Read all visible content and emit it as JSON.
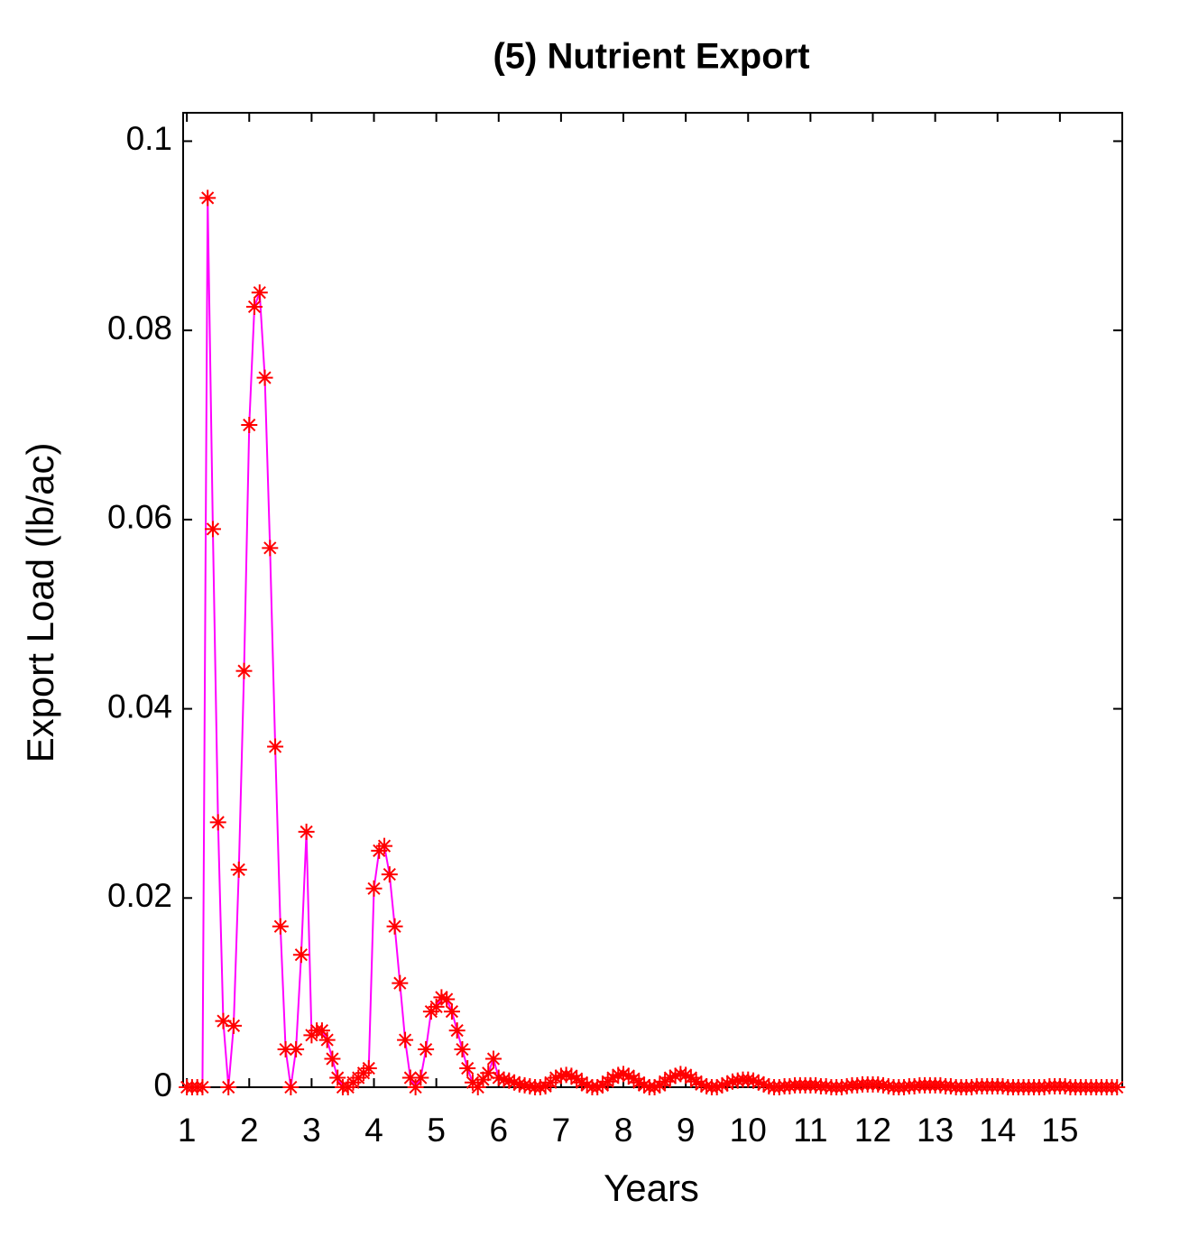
{
  "chart_data": {
    "type": "line",
    "title": "(5) Nutrient Export",
    "xlabel": "Years",
    "ylabel": "Export Load (lb/ac)",
    "x": [
      1,
      1.0833,
      1.1667,
      1.25,
      1.3333,
      1.4167,
      1.5,
      1.5833,
      1.6667,
      1.75,
      1.8333,
      1.9167,
      2,
      2.0833,
      2.1667,
      2.25,
      2.3333,
      2.4167,
      2.5,
      2.5833,
      2.6667,
      2.75,
      2.8333,
      2.9167,
      3,
      3.0833,
      3.1667,
      3.25,
      3.3333,
      3.4167,
      3.5,
      3.5833,
      3.6667,
      3.75,
      3.8333,
      3.9167,
      4,
      4.0833,
      4.1667,
      4.25,
      4.3333,
      4.4167,
      4.5,
      4.5833,
      4.6667,
      4.75,
      4.8333,
      4.9167,
      5,
      5.0833,
      5.1667,
      5.25,
      5.3333,
      5.4167,
      5.5,
      5.5833,
      5.6667,
      5.75,
      5.8333,
      5.9167,
      6,
      6.0833,
      6.1667,
      6.25,
      6.3333,
      6.4167,
      6.5,
      6.5833,
      6.6667,
      6.75,
      6.8333,
      6.9167,
      7,
      7.0833,
      7.1667,
      7.25,
      7.3333,
      7.4167,
      7.5,
      7.5833,
      7.6667,
      7.75,
      7.8333,
      7.9167,
      8,
      8.0833,
      8.1667,
      8.25,
      8.3333,
      8.4167,
      8.5,
      8.5833,
      8.6667,
      8.75,
      8.8333,
      8.9167,
      9,
      9.0833,
      9.1667,
      9.25,
      9.3333,
      9.4167,
      9.5,
      9.5833,
      9.6667,
      9.75,
      9.8333,
      9.9167,
      10,
      10.0833,
      10.1667,
      10.25,
      10.3333,
      10.4167,
      10.5,
      10.5833,
      10.6667,
      10.75,
      10.8333,
      10.9167,
      11,
      11.0833,
      11.1667,
      11.25,
      11.3333,
      11.4167,
      11.5,
      11.5833,
      11.6667,
      11.75,
      11.8333,
      11.9167,
      12,
      12.0833,
      12.1667,
      12.25,
      12.3333,
      12.4167,
      12.5,
      12.5833,
      12.6667,
      12.75,
      12.8333,
      12.9167,
      13,
      13.0833,
      13.1667,
      13.25,
      13.3333,
      13.4167,
      13.5,
      13.5833,
      13.6667,
      13.75,
      13.8333,
      13.9167,
      14,
      14.0833,
      14.1667,
      14.25,
      14.3333,
      14.4167,
      14.5,
      14.5833,
      14.6667,
      14.75,
      14.8333,
      14.9167,
      15,
      15.0833,
      15.1667,
      15.25,
      15.3333,
      15.4167,
      15.5,
      15.5833,
      15.6667,
      15.75,
      15.8333,
      15.9167
    ],
    "values": [
      0,
      0,
      0,
      0,
      0.094,
      0.059,
      0.028,
      0.007,
      0,
      0.0065,
      0.023,
      0.044,
      0.07,
      0.0825,
      0.084,
      0.075,
      0.057,
      0.036,
      0.017,
      0.004,
      0,
      0.004,
      0.014,
      0.027,
      0.0055,
      0.006,
      0.006,
      0.005,
      0.003,
      0.001,
      0,
      0,
      0.0005,
      0.001,
      0.0015,
      0.002,
      0.021,
      0.025,
      0.0255,
      0.0225,
      0.017,
      0.011,
      0.005,
      0.001,
      0,
      0.001,
      0.004,
      0.008,
      0.0085,
      0.0095,
      0.0093,
      0.008,
      0.006,
      0.004,
      0.002,
      0.0005,
      0,
      0.0008,
      0.0015,
      0.003,
      0.001,
      0.0008,
      0.0007,
      0.0005,
      0.0003,
      0.0002,
      0.0001,
      0,
      0,
      0.0001,
      0.0005,
      0.001,
      0.0012,
      0.0013,
      0.0012,
      0.0009,
      0.0005,
      0.0002,
      0,
      0,
      0.0002,
      0.0006,
      0.001,
      0.0013,
      0.0014,
      0.0012,
      0.0009,
      0.0005,
      0.0002,
      0,
      0,
      0.0002,
      0.0006,
      0.001,
      0.0012,
      0.0014,
      0.0013,
      0.001,
      0.0006,
      0.0003,
      0.0001,
      0,
      0,
      0.0002,
      0.0004,
      0.0006,
      0.0007,
      0.0008,
      0.0008,
      0.0007,
      0.0005,
      0.0003,
      0.0001,
      0,
      0,
      0.0001,
      0.0001,
      0.0002,
      0.0002,
      0.0002,
      0.0002,
      0.0002,
      0.0001,
      0.0001,
      0,
      0,
      0,
      0.0001,
      0.0002,
      0.0002,
      0.0003,
      0.0003,
      0.0003,
      0.0003,
      0.0002,
      0.0001,
      0,
      0,
      0,
      0.0001,
      0.0001,
      0.0002,
      0.0002,
      0.0002,
      0.0002,
      0.0002,
      0.0001,
      0.0001,
      0,
      0,
      0,
      0,
      0.0001,
      0.0001,
      0.0001,
      0.0001,
      0.0001,
      0.0001,
      0,
      0,
      0,
      0,
      0,
      0,
      0,
      0,
      0.0001,
      0.0001,
      0.0001,
      0.0001,
      0,
      0,
      0,
      0,
      0,
      0,
      0,
      0,
      0,
      0
    ],
    "line_color": "#ff00ff",
    "marker_color": "#ff0000",
    "xlim": [
      0.94,
      16
    ],
    "xticks": [
      1,
      2,
      3,
      4,
      5,
      6,
      7,
      8,
      9,
      10,
      11,
      12,
      13,
      14,
      15
    ],
    "ylim": [
      0,
      0.103
    ],
    "yticks": [
      0,
      0.02,
      0.04,
      0.06,
      0.08,
      0.1
    ]
  }
}
